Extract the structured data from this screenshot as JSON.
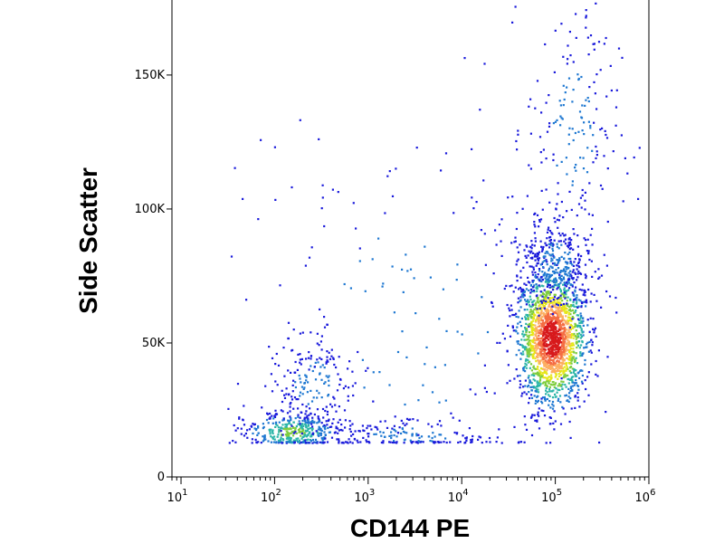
{
  "chart_data": {
    "type": "scatter",
    "title": "",
    "xlabel": "CD144 PE",
    "ylabel": "Side Scatter",
    "x_scale": "log",
    "xlim": [
      8,
      1000000
    ],
    "ylim": [
      0,
      178000
    ],
    "x_ticks": [
      {
        "base": "10",
        "exp": "1",
        "value": 10
      },
      {
        "base": "10",
        "exp": "2",
        "value": 100
      },
      {
        "base": "10",
        "exp": "3",
        "value": 1000
      },
      {
        "base": "10",
        "exp": "4",
        "value": 10000
      },
      {
        "base": "10",
        "exp": "5",
        "value": 100000
      },
      {
        "base": "10",
        "exp": "6",
        "value": 1000000
      }
    ],
    "y_ticks": [
      {
        "label": "0",
        "value": 0
      },
      {
        "label": "50K",
        "value": 50000
      },
      {
        "label": "100K",
        "value": 100000
      },
      {
        "label": "150K",
        "value": 150000
      }
    ],
    "grid": false,
    "legend": "none",
    "colormap": "density: blue-cyan-green-yellow-orange-red",
    "populations": [
      {
        "x_center": 90000,
        "y_center": 52000,
        "spread_log_x": 0.18,
        "spread_y": 12000,
        "count": 1900
      },
      {
        "x_center": 100000,
        "y_center": 80000,
        "spread_log_x": 0.2,
        "spread_y": 9000,
        "count": 350
      },
      {
        "x_center": 150,
        "y_center": 17000,
        "spread_log_x": 0.25,
        "spread_y": 3500,
        "count": 380
      },
      {
        "x_center": 250,
        "y_center": 35000,
        "spread_log_x": 0.22,
        "spread_y": 10000,
        "count": 200
      },
      {
        "x_center": 3000,
        "y_center": 16000,
        "spread_log_x": 0.5,
        "spread_y": 3000,
        "count": 160
      },
      {
        "x_center": 3000,
        "y_center": 60000,
        "spread_log_x": 0.9,
        "spread_y": 40000,
        "count": 180
      },
      {
        "x_center": 150000,
        "y_center": 130000,
        "spread_log_x": 0.25,
        "spread_y": 25000,
        "count": 180
      }
    ]
  }
}
